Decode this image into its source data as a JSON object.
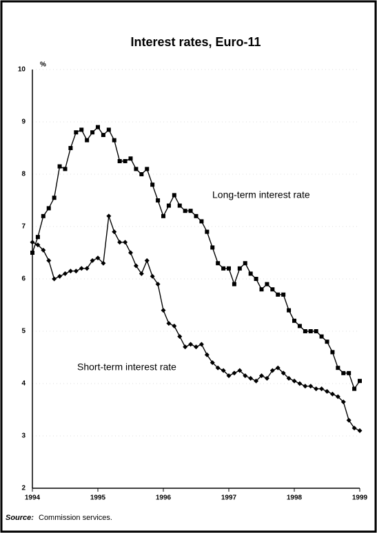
{
  "chart_data": {
    "type": "line",
    "title": "Interest rates, Euro-11",
    "y_unit": "%",
    "source_label": "Source:",
    "source_text": "Commission services.",
    "categories": [
      "1994",
      null,
      null,
      null,
      null,
      null,
      null,
      null,
      null,
      null,
      null,
      null,
      "1995",
      null,
      null,
      null,
      null,
      null,
      null,
      null,
      null,
      null,
      null,
      null,
      "1996",
      null,
      null,
      null,
      null,
      null,
      null,
      null,
      null,
      null,
      null,
      null,
      "1997",
      null,
      null,
      null,
      null,
      null,
      null,
      null,
      null,
      null,
      null,
      null,
      "1998",
      null,
      null,
      null,
      null,
      null,
      null,
      null,
      null,
      null,
      null,
      null,
      "1999"
    ],
    "series": [
      {
        "name": "Long-term interest rate",
        "color": "#000000",
        "marker": "square",
        "values": [
          6.5,
          6.8,
          7.2,
          7.35,
          7.55,
          8.15,
          8.1,
          8.5,
          8.8,
          8.85,
          8.65,
          8.8,
          8.9,
          8.75,
          8.85,
          8.65,
          8.25,
          8.25,
          8.3,
          8.1,
          8.0,
          8.1,
          7.8,
          7.5,
          7.2,
          7.4,
          7.6,
          7.4,
          7.3,
          7.3,
          7.2,
          7.1,
          6.9,
          6.6,
          6.3,
          6.2,
          6.2,
          5.9,
          6.2,
          6.3,
          6.1,
          6.0,
          5.8,
          5.9,
          5.8,
          5.7,
          5.7,
          5.4,
          5.2,
          5.1,
          5.0,
          5.0,
          5.0,
          4.9,
          4.8,
          4.6,
          4.3,
          4.2,
          4.2,
          3.9,
          4.05
        ]
      },
      {
        "name": "Short-term interest rate",
        "color": "#000000",
        "marker": "diamond",
        "values": [
          6.7,
          6.65,
          6.55,
          6.35,
          6.0,
          6.05,
          6.1,
          6.15,
          6.15,
          6.2,
          6.2,
          6.35,
          6.4,
          6.3,
          7.2,
          6.9,
          6.7,
          6.7,
          6.5,
          6.25,
          6.1,
          6.35,
          6.05,
          5.9,
          5.4,
          5.15,
          5.1,
          4.9,
          4.7,
          4.75,
          4.7,
          4.75,
          4.55,
          4.4,
          4.3,
          4.25,
          4.15,
          4.2,
          4.25,
          4.15,
          4.1,
          4.05,
          4.15,
          4.1,
          4.25,
          4.3,
          4.2,
          4.1,
          4.05,
          4.0,
          3.95,
          3.95,
          3.9,
          3.9,
          3.85,
          3.8,
          3.75,
          3.65,
          3.3,
          3.15,
          3.1
        ]
      }
    ],
    "ylim": [
      2,
      10
    ],
    "yticks": [
      2,
      3,
      4,
      5,
      6,
      7,
      8,
      9,
      10
    ],
    "grid": true
  }
}
